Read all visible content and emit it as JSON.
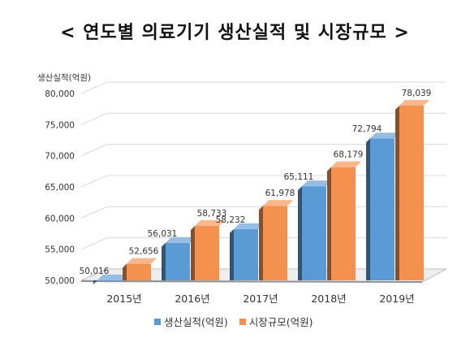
{
  "chart_data": {
    "type": "bar",
    "title": "< 연도별 의료기기 생산실적 및 시장규모 >",
    "ylabel": "생산실적(억원)",
    "xlabel": "",
    "ylim": [
      50000,
      80000
    ],
    "yticks": [
      50000,
      55000,
      60000,
      65000,
      70000,
      75000,
      80000
    ],
    "ytick_labels": [
      "50,000",
      "55,000",
      "60,000",
      "65,000",
      "70,000",
      "75,000",
      "80,000"
    ],
    "categories": [
      "2015년",
      "2016년",
      "2017년",
      "2018년",
      "2019년"
    ],
    "series": [
      {
        "name": "생산실적(억원)",
        "color": "#5b9bd5",
        "values": [
          50016,
          56031,
          58232,
          65111,
          72794
        ],
        "labels": [
          "50,016",
          "56,031",
          "58,232",
          "65,111",
          "72,794"
        ]
      },
      {
        "name": "시장규모(억원)",
        "color": "#f4914e",
        "values": [
          52656,
          58733,
          61978,
          68179,
          78039
        ],
        "labels": [
          "52,656",
          "58,733",
          "61,978",
          "68,179",
          "78,039"
        ]
      }
    ],
    "legend_position": "bottom",
    "grid": true,
    "style": "3d-bar"
  }
}
